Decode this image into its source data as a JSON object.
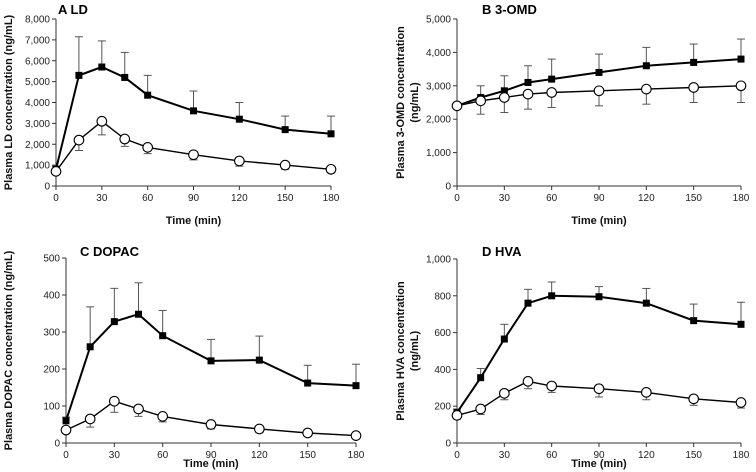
{
  "chart_data": [
    {
      "type": "line",
      "panel_letter": "A",
      "title": "LD",
      "xlabel": "Time (min)",
      "ylabel": "Plasma LD concentration (ng/mL)",
      "xlim": [
        0,
        180
      ],
      "ylim": [
        0,
        8000
      ],
      "xticks": [
        0,
        30,
        60,
        90,
        120,
        150,
        180
      ],
      "yticks": [
        0,
        1000,
        2000,
        3000,
        4000,
        5000,
        6000,
        7000,
        8000
      ],
      "ytick_labels": [
        "0",
        "1,000",
        "2,000",
        "3,000",
        "4,000",
        "5,000",
        "6,000",
        "7,000",
        "8,000"
      ],
      "x": [
        0,
        15,
        30,
        45,
        60,
        90,
        120,
        150,
        180
      ],
      "series": [
        {
          "name": "filled-square",
          "marker": "square",
          "values": [
            800,
            5300,
            5700,
            5200,
            4350,
            3600,
            3200,
            2700,
            2500
          ],
          "error": [
            150,
            1850,
            1250,
            1200,
            950,
            950,
            800,
            650,
            850
          ]
        },
        {
          "name": "open-circle",
          "marker": "circle",
          "values": [
            700,
            2200,
            3100,
            2250,
            1850,
            1500,
            1200,
            1000,
            800
          ],
          "error": [
            100,
            500,
            650,
            350,
            300,
            250,
            250,
            200,
            150
          ]
        }
      ]
    },
    {
      "type": "line",
      "panel_letter": "B",
      "title": "3-OMD",
      "xlabel": "Time (min)",
      "ylabel": "Plasma 3-OMD concentration (ng/mL)",
      "ylabel_lines": [
        "Plasma 3-OMD concentration",
        "(ng/mL)"
      ],
      "xlim": [
        0,
        180
      ],
      "ylim": [
        0,
        5000
      ],
      "xticks": [
        0,
        30,
        60,
        90,
        120,
        150,
        180
      ],
      "yticks": [
        0,
        1000,
        2000,
        3000,
        4000,
        5000
      ],
      "ytick_labels": [
        "0",
        "1,000",
        "2,000",
        "3,000",
        "4,000",
        "5,000"
      ],
      "x": [
        0,
        15,
        30,
        45,
        60,
        90,
        120,
        150,
        180
      ],
      "series": [
        {
          "name": "filled-square",
          "marker": "square",
          "values": [
            2400,
            2650,
            2850,
            3100,
            3200,
            3400,
            3600,
            3700,
            3800
          ],
          "error": [
            100,
            350,
            450,
            500,
            600,
            550,
            550,
            550,
            600
          ]
        },
        {
          "name": "open-circle",
          "marker": "circle",
          "values": [
            2400,
            2550,
            2650,
            2750,
            2800,
            2850,
            2900,
            2950,
            3000
          ],
          "error": [
            100,
            400,
            450,
            450,
            450,
            450,
            450,
            450,
            500
          ]
        }
      ]
    },
    {
      "type": "line",
      "panel_letter": "C",
      "title": "DOPAC",
      "xlabel": "Time (min)",
      "ylabel": "Plasma DOPAC concentration (ng/mL)",
      "xlim": [
        0,
        180
      ],
      "ylim": [
        0,
        500
      ],
      "xticks": [
        0,
        30,
        60,
        90,
        120,
        150,
        180
      ],
      "yticks": [
        0,
        100,
        200,
        300,
        400,
        500
      ],
      "ytick_labels": [
        "0",
        "100",
        "200",
        "300",
        "400",
        "500"
      ],
      "x": [
        0,
        15,
        30,
        45,
        60,
        90,
        120,
        150,
        180
      ],
      "series": [
        {
          "name": "filled-square",
          "marker": "square",
          "values": [
            60,
            260,
            328,
            348,
            290,
            222,
            224,
            162,
            155
          ],
          "error": [
            10,
            108,
            90,
            85,
            68,
            58,
            65,
            48,
            58
          ]
        },
        {
          "name": "open-circle",
          "marker": "circle",
          "values": [
            35,
            65,
            113,
            92,
            72,
            50,
            38,
            27,
            20
          ],
          "error": [
            8,
            22,
            30,
            20,
            15,
            12,
            10,
            8,
            6
          ]
        }
      ]
    },
    {
      "type": "line",
      "panel_letter": "D",
      "title": "HVA",
      "xlabel": "Time (min)",
      "ylabel": "Plasma HVA concentration (ng/mL)",
      "ylabel_lines": [
        "Plasma HVA concentration",
        "(ng/mL)"
      ],
      "xlim": [
        0,
        180
      ],
      "ylim": [
        0,
        1000
      ],
      "xticks": [
        0,
        30,
        60,
        90,
        120,
        150,
        180
      ],
      "yticks": [
        0,
        200,
        400,
        600,
        800,
        1000
      ],
      "ytick_labels": [
        "0",
        "200",
        "400",
        "600",
        "800",
        "1,000"
      ],
      "x": [
        0,
        15,
        30,
        45,
        60,
        90,
        120,
        150,
        180
      ],
      "series": [
        {
          "name": "filled-square",
          "marker": "square",
          "values": [
            165,
            355,
            565,
            760,
            800,
            795,
            760,
            665,
            645
          ],
          "error": [
            20,
            50,
            80,
            75,
            75,
            55,
            80,
            90,
            120
          ]
        },
        {
          "name": "open-circle",
          "marker": "circle",
          "values": [
            150,
            185,
            270,
            335,
            310,
            295,
            275,
            240,
            220
          ],
          "error": [
            20,
            30,
            35,
            40,
            35,
            45,
            40,
            35,
            30
          ]
        }
      ]
    }
  ]
}
